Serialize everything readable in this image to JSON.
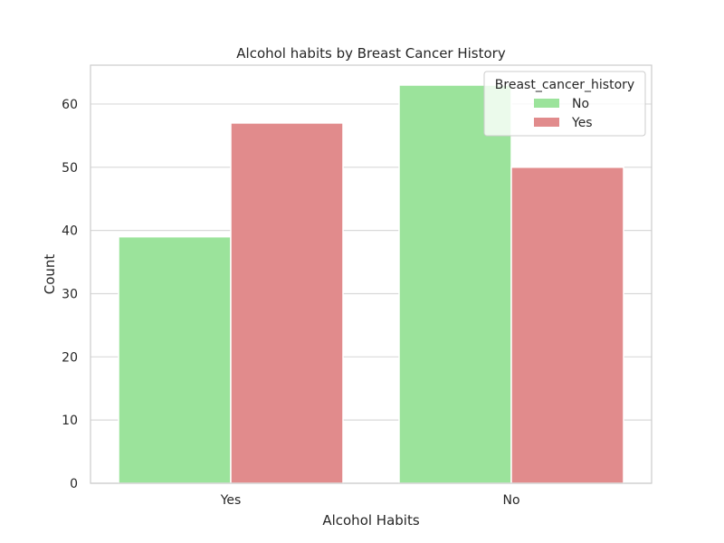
{
  "chart_data": {
    "type": "bar",
    "title": "Alcohol habits by Breast Cancer History",
    "xlabel": "Alcohol Habits",
    "ylabel": "Count",
    "categories": [
      "Yes",
      "No"
    ],
    "series": [
      {
        "name": "No",
        "values": [
          39,
          63
        ],
        "color": "#9be39b"
      },
      {
        "name": "Yes",
        "values": [
          57,
          50
        ],
        "color": "#e18b8c"
      }
    ],
    "ylim": [
      0,
      66.15
    ],
    "yticks": [
      0,
      10,
      20,
      30,
      40,
      50,
      60
    ],
    "grid": true,
    "legend": {
      "title": "Breast_cancer_history",
      "placement": "top-right"
    }
  }
}
